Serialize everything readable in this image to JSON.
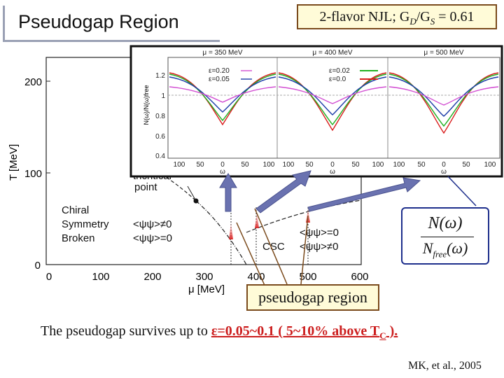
{
  "slide": {
    "title": "Pseudogap Region",
    "param_prefix": "2-flavor NJL; G",
    "param_sub_d": "D",
    "param_mid": "/G",
    "param_sub_s": "S",
    "param_suffix": " = 0.61",
    "pseudogap_label": "pseudogap region",
    "survive_prefix": "The pseudogap survives up to ",
    "survive_eps": "ε",
    "survive_value": "=0.05~0.1 ( 5~10% above T",
    "survive_sub": "C",
    "survive_end": " ).",
    "credit": "MK, et al., 2005"
  },
  "phase_diagram": {
    "ylabel": "T [MeV]",
    "xlabel": "μ [MeV]",
    "xticks": [
      "0",
      "100",
      "200",
      "300",
      "400",
      "500",
      "600"
    ],
    "yticks": [
      "0",
      "100",
      "200"
    ],
    "label_tricritical": "tricritical",
    "label_point": "point",
    "label_chiral1": "Chiral",
    "label_chiral2": "Symmetry",
    "label_chiral3": "Broken",
    "label_chiral_qq1": "<ψψ>≠0",
    "label_chiral_qq2": "<ψψ>=0",
    "label_csc": "CSC",
    "label_csc_qq1": "<ψψ>=0",
    "label_csc_qq2": "<ψψ>≠0"
  },
  "dos_panels": [
    {
      "label": "μ = 350 MeV",
      "legend": [
        "ε=0.20",
        "ε=0.05"
      ],
      "legend_colors": [
        "#d24fd2",
        "#1c3ca8"
      ]
    },
    {
      "label": "μ = 400 MeV",
      "legend": [
        "ε=0.02",
        "ε=0.0"
      ],
      "legend_colors": [
        "#22b022",
        "#d81c1c"
      ]
    },
    {
      "label": "μ = 500 MeV",
      "legend": [],
      "legend_colors": []
    }
  ],
  "dos_axes": {
    "ylabel": "N(ω)/N(ω)free",
    "xlabel": "ω",
    "yticks": [
      "1.2",
      "1",
      "0.8",
      "0.6",
      "0.4"
    ],
    "xticks": [
      "100",
      "50",
      "0",
      "50",
      "100"
    ]
  },
  "ratio": {
    "numerator": "N(ω)",
    "denominator": "N",
    "denom_sub": "free",
    "denom_tail": "(ω)"
  },
  "colors": {
    "arrow": "#6a72b0",
    "box_border": "#7a4a1c",
    "box_fill": "#fffbd8",
    "accent_red": "#cc1e1e",
    "ratio_border": "#1e2f8c"
  }
}
